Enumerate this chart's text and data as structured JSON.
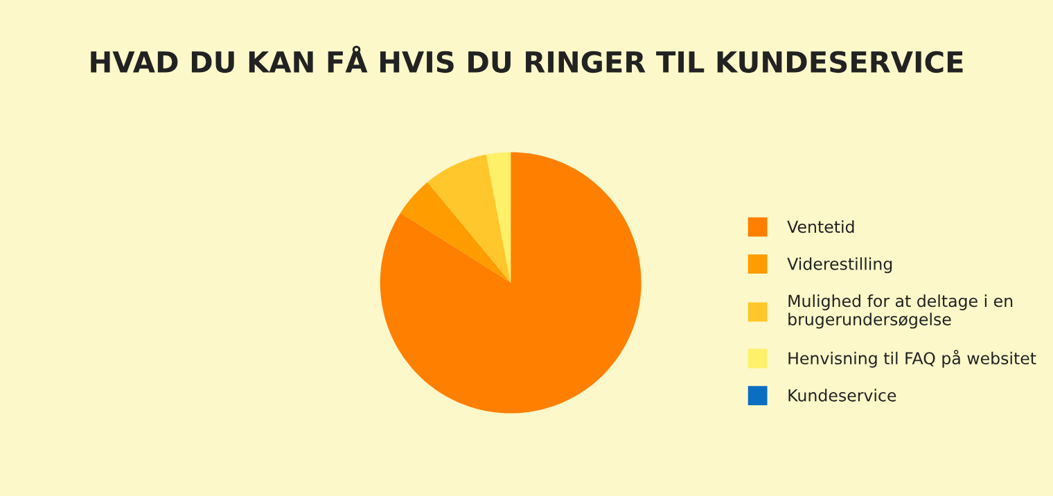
{
  "chart_data": {
    "type": "pie",
    "title": "HVAD DU KAN FÅ HVIS DU RINGER TIL KUNDESERVICE",
    "categories": [
      "Ventetid",
      "Viderestilling",
      "Mulighed for at deltage i en\nbrugerundersøgelse",
      "Henvisning til FAQ på websitet",
      "Kundeservice"
    ],
    "values": [
      84,
      5,
      8,
      3,
      0
    ],
    "colors": [
      "#ff7f00",
      "#ff9c00",
      "#ffc72c",
      "#fff06a",
      "#0a6ec2"
    ],
    "legend": "right"
  }
}
